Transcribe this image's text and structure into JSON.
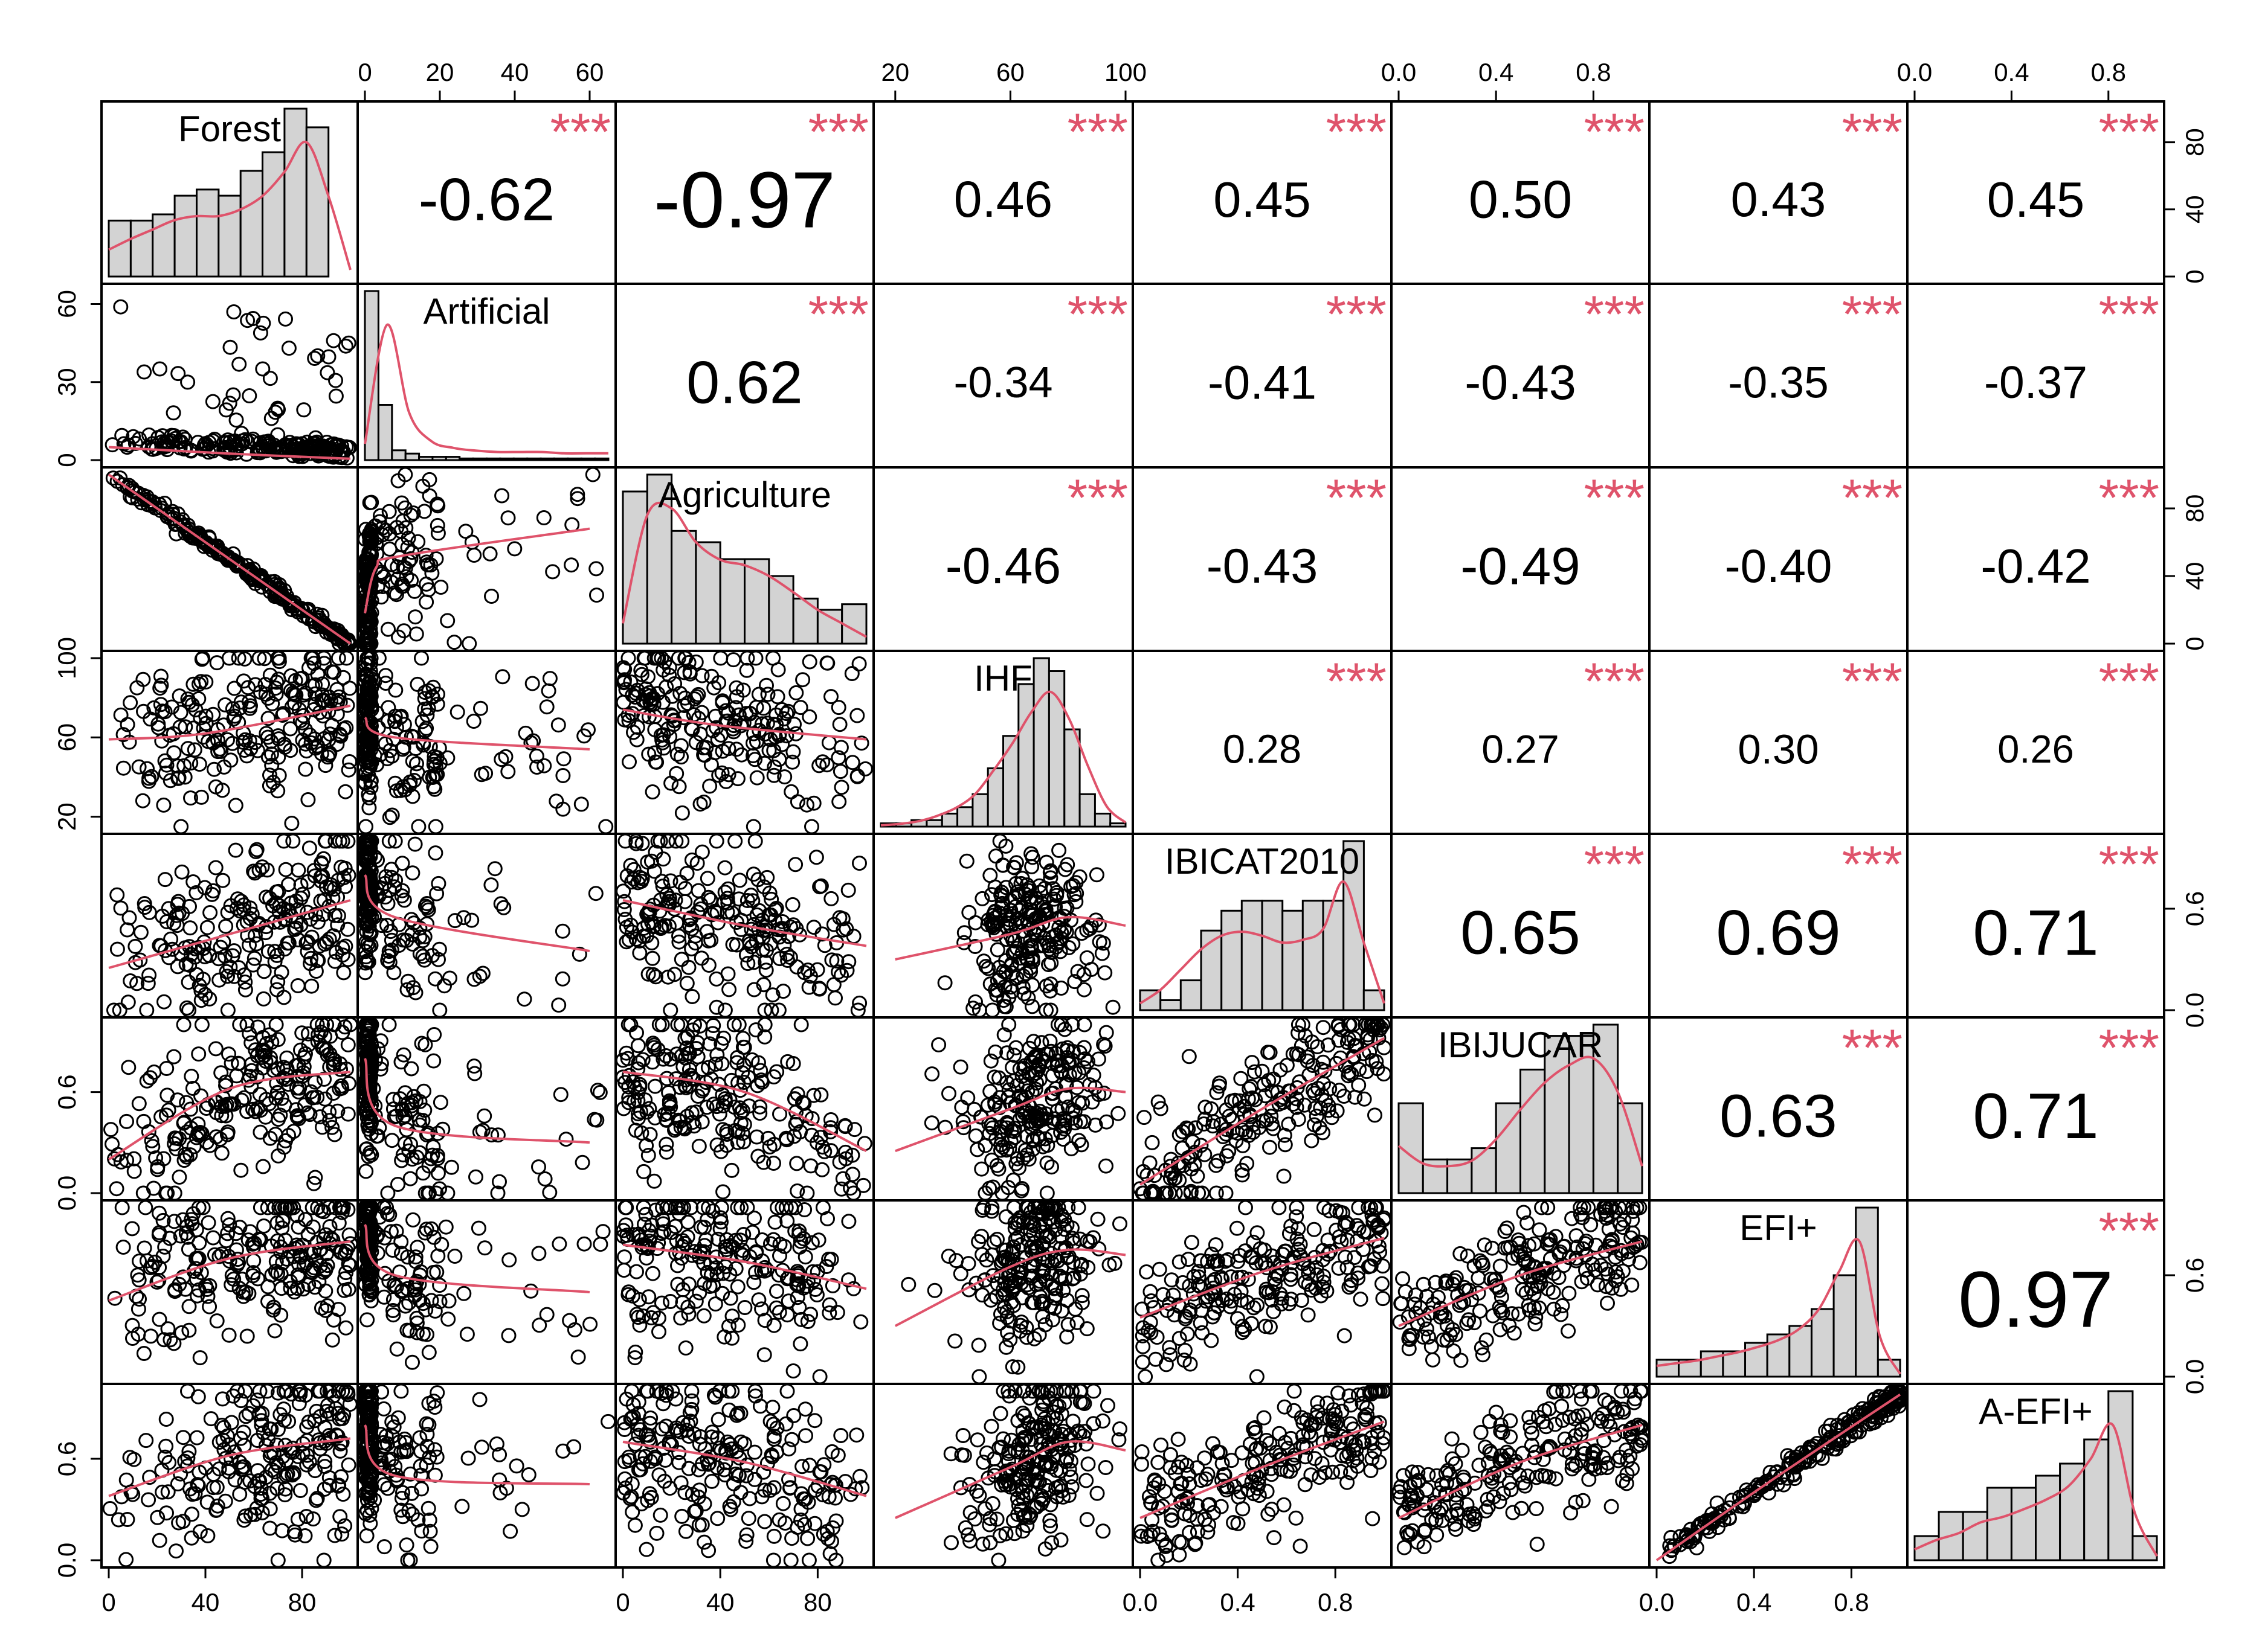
{
  "chart_data": {
    "type": "scatter-matrix",
    "title": "",
    "variables": [
      "Forest",
      "Artificial",
      "Agriculture",
      "IHF",
      "IBICAT2010",
      "IBIJUCAR",
      "EFI+",
      "A-EFI+"
    ],
    "significance_label": "***",
    "colors": {
      "smooth": "#DF536B",
      "stars": "#DF536B",
      "hist_fill": "#D3D3D3",
      "points": "#000000",
      "frame": "#000000"
    },
    "correlations": [
      {
        "row": 0,
        "col": 1,
        "value": "-0.62",
        "stars": "***"
      },
      {
        "row": 0,
        "col": 2,
        "value": "-0.97",
        "stars": "***"
      },
      {
        "row": 0,
        "col": 3,
        "value": "0.46",
        "stars": "***"
      },
      {
        "row": 0,
        "col": 4,
        "value": "0.45",
        "stars": "***"
      },
      {
        "row": 0,
        "col": 5,
        "value": "0.50",
        "stars": "***"
      },
      {
        "row": 0,
        "col": 6,
        "value": "0.43",
        "stars": "***"
      },
      {
        "row": 0,
        "col": 7,
        "value": "0.45",
        "stars": "***"
      },
      {
        "row": 1,
        "col": 2,
        "value": "0.62",
        "stars": "***"
      },
      {
        "row": 1,
        "col": 3,
        "value": "-0.34",
        "stars": "***"
      },
      {
        "row": 1,
        "col": 4,
        "value": "-0.41",
        "stars": "***"
      },
      {
        "row": 1,
        "col": 5,
        "value": "-0.43",
        "stars": "***"
      },
      {
        "row": 1,
        "col": 6,
        "value": "-0.35",
        "stars": "***"
      },
      {
        "row": 1,
        "col": 7,
        "value": "-0.37",
        "stars": "***"
      },
      {
        "row": 2,
        "col": 3,
        "value": "-0.46",
        "stars": "***"
      },
      {
        "row": 2,
        "col": 4,
        "value": "-0.43",
        "stars": "***"
      },
      {
        "row": 2,
        "col": 5,
        "value": "-0.49",
        "stars": "***"
      },
      {
        "row": 2,
        "col": 6,
        "value": "-0.40",
        "stars": "***"
      },
      {
        "row": 2,
        "col": 7,
        "value": "-0.42",
        "stars": "***"
      },
      {
        "row": 3,
        "col": 4,
        "value": "0.28",
        "stars": "***"
      },
      {
        "row": 3,
        "col": 5,
        "value": "0.27",
        "stars": "***"
      },
      {
        "row": 3,
        "col": 6,
        "value": "0.30",
        "stars": "***"
      },
      {
        "row": 3,
        "col": 7,
        "value": "0.26",
        "stars": "***"
      },
      {
        "row": 4,
        "col": 5,
        "value": "0.65",
        "stars": "***"
      },
      {
        "row": 4,
        "col": 6,
        "value": "0.69",
        "stars": "***"
      },
      {
        "row": 4,
        "col": 7,
        "value": "0.71",
        "stars": "***"
      },
      {
        "row": 5,
        "col": 6,
        "value": "0.63",
        "stars": "***"
      },
      {
        "row": 5,
        "col": 7,
        "value": "0.71",
        "stars": "***"
      },
      {
        "row": 6,
        "col": 7,
        "value": "0.97",
        "stars": "***"
      }
    ],
    "histograms": [
      {
        "var": "Forest",
        "range": [
          0,
          100
        ],
        "counts": [
          9,
          9,
          10,
          13,
          14,
          13,
          17,
          20,
          27,
          24,
          0
        ],
        "density": [
          0.2,
          0.28,
          0.35,
          0.42,
          0.45,
          0.45,
          0.5,
          0.6,
          0.78,
          1.0,
          0.6,
          0.05
        ]
      },
      {
        "var": "Artificial",
        "range": [
          0,
          60
        ],
        "counts": [
          52,
          17,
          3,
          2,
          1,
          1,
          1,
          0.5,
          0.5,
          0.5,
          0.5,
          0.5,
          0.5,
          0.5,
          0.5,
          0.5,
          0.5,
          0.5
        ],
        "density": [
          0.12,
          1.0,
          0.35,
          0.14,
          0.09,
          0.07,
          0.06,
          0.06,
          0.06,
          0.05,
          0.05,
          0.05
        ]
      },
      {
        "var": "Agriculture",
        "range": [
          0,
          100
        ],
        "counts": [
          27,
          30,
          20,
          18,
          15,
          15,
          12,
          8,
          6,
          7
        ],
        "density": [
          0.15,
          0.95,
          1.0,
          0.75,
          0.62,
          0.58,
          0.5,
          0.38,
          0.25,
          0.15,
          0.05
        ]
      },
      {
        "var": "IHF",
        "range": [
          20,
          100
        ],
        "counts": [
          0.5,
          0.5,
          1,
          1,
          2,
          3,
          5,
          9,
          14,
          22,
          26,
          24,
          15,
          5,
          2,
          0.5
        ],
        "density": [
          0.01,
          0.02,
          0.04,
          0.08,
          0.14,
          0.24,
          0.42,
          0.62,
          0.85,
          1.0,
          0.8,
          0.45,
          0.15,
          0.03
        ]
      },
      {
        "var": "IBICAT2010",
        "range": [
          0,
          1
        ],
        "counts": [
          2,
          1,
          3,
          8,
          10,
          11,
          11,
          10,
          11,
          11,
          17,
          2
        ],
        "density": [
          0.05,
          0.15,
          0.3,
          0.45,
          0.55,
          0.58,
          0.55,
          0.5,
          0.52,
          0.6,
          0.95,
          0.5,
          0.05
        ]
      },
      {
        "var": "IBIJUCAR",
        "range": [
          0,
          1
        ],
        "counts": [
          8,
          3,
          3,
          4,
          8,
          11,
          14,
          14,
          15,
          8
        ],
        "density": [
          0.35,
          0.22,
          0.2,
          0.24,
          0.4,
          0.62,
          0.82,
          0.95,
          1.0,
          0.75,
          0.2
        ]
      },
      {
        "var": "EFI+",
        "range": [
          0,
          1
        ],
        "counts": [
          2,
          2,
          3,
          3,
          4,
          5,
          6,
          8,
          12,
          20,
          2
        ],
        "density": [
          0.08,
          0.1,
          0.12,
          0.15,
          0.18,
          0.22,
          0.27,
          0.35,
          0.5,
          0.78,
          1.0,
          0.3,
          0.02
        ]
      },
      {
        "var": "A-EFI+",
        "range": [
          0,
          1
        ],
        "counts": [
          2,
          4,
          4,
          6,
          6,
          7,
          8,
          10,
          14,
          2
        ],
        "density": [
          0.08,
          0.15,
          0.2,
          0.28,
          0.32,
          0.38,
          0.45,
          0.55,
          0.75,
          1.0,
          0.35,
          0.03
        ]
      }
    ],
    "axes": {
      "left": [
        {
          "row": 1,
          "ticks": [
            0,
            30,
            60
          ],
          "labels": [
            "0",
            "30",
            "60"
          ]
        },
        {
          "row": 3,
          "ticks": [
            20,
            60,
            100
          ],
          "labels": [
            "20",
            "60",
            "100"
          ]
        },
        {
          "row": 5,
          "ticks": [
            0.0,
            0.6
          ],
          "labels": [
            "0.0",
            "0.6"
          ]
        },
        {
          "row": 7,
          "ticks": [
            0.0,
            0.6
          ],
          "labels": [
            "0.0",
            "0.6"
          ]
        }
      ],
      "right": [
        {
          "row": 0,
          "ticks": [
            0,
            40,
            80
          ],
          "labels": [
            "0",
            "40",
            "80"
          ]
        },
        {
          "row": 2,
          "ticks": [
            0,
            40,
            80
          ],
          "labels": [
            "0",
            "40",
            "80"
          ]
        },
        {
          "row": 4,
          "ticks": [
            0.0,
            0.6
          ],
          "labels": [
            "0.0",
            "0.6"
          ]
        },
        {
          "row": 6,
          "ticks": [
            0.0,
            0.6
          ],
          "labels": [
            "0.0",
            "0.6"
          ]
        }
      ],
      "top": [
        {
          "col": 1,
          "ticks": [
            0,
            20,
            40,
            60
          ],
          "labels": [
            "0",
            "20",
            "40",
            "60"
          ]
        },
        {
          "col": 3,
          "ticks": [
            20,
            60,
            100
          ],
          "labels": [
            "20",
            "60",
            "100"
          ]
        },
        {
          "col": 5,
          "ticks": [
            0.0,
            0.4,
            0.8
          ],
          "labels": [
            "0.0",
            "0.4",
            "0.8"
          ]
        },
        {
          "col": 7,
          "ticks": [
            0.0,
            0.4,
            0.8
          ],
          "labels": [
            "0.0",
            "0.4",
            "0.8"
          ]
        }
      ],
      "bottom": [
        {
          "col": 0,
          "ticks": [
            0,
            40,
            80
          ],
          "labels": [
            "0",
            "40",
            "80"
          ]
        },
        {
          "col": 2,
          "ticks": [
            0,
            40,
            80
          ],
          "labels": [
            "0",
            "40",
            "80"
          ]
        },
        {
          "col": 4,
          "ticks": [
            0.0,
            0.4,
            0.8
          ],
          "labels": [
            "0.0",
            "0.4",
            "0.8"
          ]
        },
        {
          "col": 6,
          "ticks": [
            0.0,
            0.4,
            0.8
          ],
          "labels": [
            "0.0",
            "0.4",
            "0.8"
          ]
        }
      ]
    },
    "var_ranges": [
      [
        0,
        100
      ],
      [
        0,
        65
      ],
      [
        0,
        100
      ],
      [
        15,
        100
      ],
      [
        0,
        1
      ],
      [
        0,
        1
      ],
      [
        0,
        1
      ],
      [
        0,
        1
      ]
    ],
    "scatter_relations": [
      {
        "row": 1,
        "col": 0,
        "pattern": "artificial_vs_forest",
        "smooth": [
          [
            0,
            5
          ],
          [
            50,
            2.5
          ],
          [
            100,
            0.5
          ]
        ]
      },
      {
        "row": 2,
        "col": 0,
        "pattern": "neg_linear",
        "smooth": [
          [
            0,
            100
          ],
          [
            100,
            0
          ]
        ]
      },
      {
        "row": 2,
        "col": 1,
        "pattern": "agri_vs_artificial",
        "smooth": [
          [
            0,
            18
          ],
          [
            3,
            45
          ],
          [
            10,
            52
          ],
          [
            60,
            68
          ]
        ]
      },
      {
        "row": 3,
        "col": 0,
        "pattern": "pos_weak",
        "smooth": [
          [
            0,
            59
          ],
          [
            40,
            62
          ],
          [
            100,
            76
          ]
        ]
      },
      {
        "row": 3,
        "col": 1,
        "pattern": "vs_artificial",
        "smooth": [
          [
            0,
            70
          ],
          [
            8,
            60
          ],
          [
            60,
            54
          ]
        ]
      },
      {
        "row": 3,
        "col": 2,
        "pattern": "neg_weak",
        "smooth": [
          [
            0,
            74
          ],
          [
            40,
            66
          ],
          [
            100,
            59
          ]
        ]
      },
      {
        "row": 4,
        "col": 0,
        "pattern": "pos_mod",
        "smooth": [
          [
            0,
            0.25
          ],
          [
            50,
            0.45
          ],
          [
            100,
            0.65
          ]
        ]
      },
      {
        "row": 4,
        "col": 1,
        "pattern": "vs_artificial",
        "smooth": [
          [
            0,
            0.8
          ],
          [
            8,
            0.55
          ],
          [
            60,
            0.35
          ]
        ]
      },
      {
        "row": 4,
        "col": 2,
        "pattern": "neg_mod",
        "smooth": [
          [
            0,
            0.65
          ],
          [
            50,
            0.5
          ],
          [
            100,
            0.38
          ]
        ]
      },
      {
        "row": 4,
        "col": 3,
        "pattern": "pos_ihf",
        "smooth": [
          [
            20,
            0.3
          ],
          [
            60,
            0.45
          ],
          [
            80,
            0.55
          ],
          [
            100,
            0.5
          ]
        ]
      },
      {
        "row": 5,
        "col": 0,
        "pattern": "pos_mod",
        "smooth": [
          [
            0,
            0.2
          ],
          [
            50,
            0.62
          ],
          [
            100,
            0.72
          ]
        ]
      },
      {
        "row": 5,
        "col": 1,
        "pattern": "vs_artificial",
        "smooth": [
          [
            0,
            0.8
          ],
          [
            8,
            0.4
          ],
          [
            60,
            0.3
          ]
        ]
      },
      {
        "row": 5,
        "col": 2,
        "pattern": "neg_mod",
        "smooth": [
          [
            0,
            0.72
          ],
          [
            50,
            0.6
          ],
          [
            100,
            0.25
          ]
        ]
      },
      {
        "row": 5,
        "col": 3,
        "pattern": "pos_ihf",
        "smooth": [
          [
            20,
            0.25
          ],
          [
            60,
            0.5
          ],
          [
            80,
            0.62
          ],
          [
            100,
            0.6
          ]
        ]
      },
      {
        "row": 5,
        "col": 4,
        "pattern": "pos_strong",
        "smooth": [
          [
            0,
            0.05
          ],
          [
            0.5,
            0.5
          ],
          [
            1,
            0.92
          ]
        ]
      },
      {
        "row": 6,
        "col": 0,
        "pattern": "pos_mod",
        "smooth": [
          [
            0,
            0.45
          ],
          [
            50,
            0.7
          ],
          [
            100,
            0.8
          ]
        ]
      },
      {
        "row": 6,
        "col": 1,
        "pattern": "vs_artificial",
        "smooth": [
          [
            0,
            0.9
          ],
          [
            8,
            0.6
          ],
          [
            60,
            0.5
          ]
        ]
      },
      {
        "row": 6,
        "col": 2,
        "pattern": "neg_mod",
        "smooth": [
          [
            0,
            0.78
          ],
          [
            50,
            0.68
          ],
          [
            100,
            0.52
          ]
        ]
      },
      {
        "row": 6,
        "col": 3,
        "pattern": "pos_ihf",
        "smooth": [
          [
            20,
            0.3
          ],
          [
            60,
            0.65
          ],
          [
            80,
            0.75
          ],
          [
            100,
            0.72
          ]
        ]
      },
      {
        "row": 6,
        "col": 4,
        "pattern": "pos_strong",
        "smooth": [
          [
            0,
            0.35
          ],
          [
            0.5,
            0.62
          ],
          [
            1,
            0.82
          ]
        ]
      },
      {
        "row": 6,
        "col": 5,
        "pattern": "pos_strong",
        "smooth": [
          [
            0,
            0.3
          ],
          [
            0.5,
            0.6
          ],
          [
            1,
            0.8
          ]
        ]
      },
      {
        "row": 7,
        "col": 0,
        "pattern": "pos_mod",
        "smooth": [
          [
            0,
            0.38
          ],
          [
            50,
            0.62
          ],
          [
            100,
            0.72
          ]
        ]
      },
      {
        "row": 7,
        "col": 1,
        "pattern": "vs_artificial",
        "smooth": [
          [
            0,
            0.8
          ],
          [
            8,
            0.5
          ],
          [
            60,
            0.45
          ]
        ]
      },
      {
        "row": 7,
        "col": 2,
        "pattern": "neg_mod",
        "smooth": [
          [
            0,
            0.7
          ],
          [
            50,
            0.58
          ],
          [
            100,
            0.38
          ]
        ]
      },
      {
        "row": 7,
        "col": 3,
        "pattern": "pos_ihf",
        "smooth": [
          [
            20,
            0.25
          ],
          [
            60,
            0.55
          ],
          [
            80,
            0.7
          ],
          [
            100,
            0.65
          ]
        ]
      },
      {
        "row": 7,
        "col": 4,
        "pattern": "pos_strong",
        "smooth": [
          [
            0,
            0.25
          ],
          [
            0.5,
            0.55
          ],
          [
            1,
            0.82
          ]
        ]
      },
      {
        "row": 7,
        "col": 5,
        "pattern": "pos_strong",
        "smooth": [
          [
            0,
            0.25
          ],
          [
            0.5,
            0.58
          ],
          [
            1,
            0.8
          ]
        ]
      },
      {
        "row": 7,
        "col": 6,
        "pattern": "near_identity",
        "smooth": [
          [
            0,
            0.0
          ],
          [
            0.5,
            0.5
          ],
          [
            1,
            0.98
          ]
        ]
      }
    ]
  }
}
